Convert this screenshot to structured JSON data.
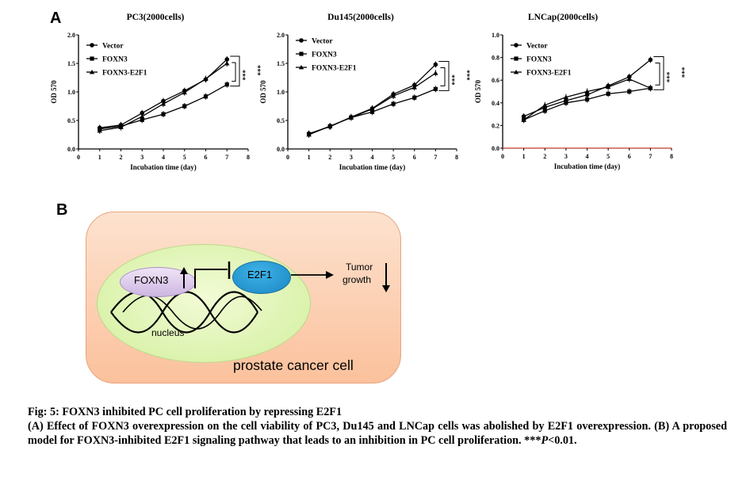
{
  "panel_a_letter": "A",
  "panel_b_letter": "B",
  "chart_data": [
    {
      "type": "line",
      "title": "PC3(2000cells)",
      "xlabel": "Incubation time (day)",
      "ylabel": "OD 570",
      "xlim": [
        0,
        8
      ],
      "ylim": [
        0,
        2.0
      ],
      "xticks": [
        "0",
        "1",
        "2",
        "3",
        "4",
        "5",
        "6",
        "7",
        "8"
      ],
      "yticks": [
        "0.0",
        "0.5",
        "1.0",
        "1.5",
        "2.0"
      ],
      "x": [
        1,
        2,
        3,
        4,
        5,
        6,
        7
      ],
      "series": [
        {
          "name": "Vector",
          "marker": "circle",
          "values": [
            0.37,
            0.42,
            0.63,
            0.84,
            1.02,
            1.22,
            1.57
          ]
        },
        {
          "name": "FOXN3",
          "marker": "square",
          "values": [
            0.35,
            0.4,
            0.51,
            0.61,
            0.75,
            0.92,
            1.13
          ]
        },
        {
          "name": "FOXN3-E2F1",
          "marker": "triangle",
          "values": [
            0.32,
            0.38,
            0.57,
            0.79,
            0.99,
            1.23,
            1.5
          ]
        }
      ],
      "legend": "top-left",
      "significance": [
        "***",
        "***"
      ]
    },
    {
      "type": "line",
      "title": "Du145(2000cells)",
      "xlabel": "Incubation time (day)",
      "ylabel": "OD 570",
      "xlim": [
        0,
        8
      ],
      "ylim": [
        0,
        2.0
      ],
      "xticks": [
        "0",
        "1",
        "2",
        "3",
        "4",
        "5",
        "6",
        "7",
        "8"
      ],
      "yticks": [
        "0.0",
        "0.5",
        "1.0",
        "1.5",
        "2.0"
      ],
      "x": [
        1,
        2,
        3,
        4,
        5,
        6,
        7
      ],
      "series": [
        {
          "name": "Vector",
          "marker": "circle",
          "values": [
            0.27,
            0.39,
            0.56,
            0.71,
            0.96,
            1.12,
            1.48
          ]
        },
        {
          "name": "FOXN3",
          "marker": "square",
          "values": [
            0.26,
            0.4,
            0.55,
            0.65,
            0.79,
            0.9,
            1.05
          ]
        },
        {
          "name": "FOXN3-E2F1",
          "marker": "triangle",
          "values": [
            0.25,
            0.4,
            0.55,
            0.7,
            0.93,
            1.08,
            1.33
          ]
        }
      ],
      "legend": "top-left",
      "significance": [
        "***",
        "***"
      ]
    },
    {
      "type": "line",
      "title": "LNCap(2000cells)",
      "xlabel": "Incubation time (day)",
      "ylabel": "OD 570",
      "xlim": [
        0,
        8
      ],
      "ylim": [
        0,
        1.0
      ],
      "xticks": [
        "0",
        "1",
        "2",
        "3",
        "4",
        "5",
        "6",
        "7",
        "8"
      ],
      "yticks": [
        "0.0",
        "0.2",
        "0.4",
        "0.6",
        "0.8",
        "1.0"
      ],
      "x": [
        1,
        2,
        3,
        4,
        5,
        6,
        7
      ],
      "series": [
        {
          "name": "Vector",
          "marker": "circle",
          "values": [
            0.28,
            0.36,
            0.42,
            0.47,
            0.55,
            0.63,
            0.78
          ]
        },
        {
          "name": "FOXN3",
          "marker": "square",
          "values": [
            0.25,
            0.33,
            0.4,
            0.43,
            0.48,
            0.5,
            0.53
          ]
        },
        {
          "name": "FOXN3-E2F1",
          "marker": "triangle",
          "values": [
            0.25,
            0.38,
            0.45,
            0.5,
            0.54,
            0.61,
            0.53
          ]
        }
      ],
      "legend": "top-left",
      "significance": [
        "***",
        "***"
      ]
    }
  ],
  "diagram": {
    "foxn3_label": "FOXN3",
    "e2f1_label": "E2F1",
    "tumor_line1": "Tumor",
    "tumor_line2": "growth",
    "nucleus_label": "nucleus",
    "cell_label": "prostate cancer cell"
  },
  "caption": {
    "line1": "Fig: 5: FOXN3 inhibited PC cell proliferation by repressing E2F1",
    "line2": "(A) Effect of FOXN3 overexpression on the cell viability of PC3, Du145 and LNCap cells was abolished by E2F1 overexpression. (B) A proposed model for FOXN3-inhibited E2F1 signaling pathway that leads to an inhibition in PC cell proliferation. ***",
    "p_letter": "P",
    "p_value": "<0.01."
  }
}
